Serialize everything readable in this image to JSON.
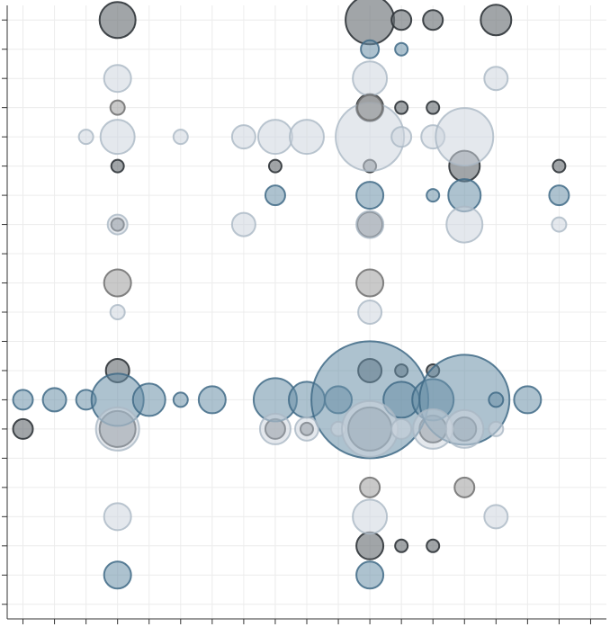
{
  "chart_data": {
    "type": "scatter",
    "title": "",
    "xlabel": "",
    "ylabel": "",
    "grid": true,
    "legend": "none",
    "xlim": [
      -0.5,
      18.5
    ],
    "ylim": [
      0.5,
      21.5
    ],
    "x_ticks": [
      0,
      1,
      2,
      3,
      4,
      5,
      6,
      7,
      8,
      9,
      10,
      11,
      12,
      13,
      14,
      15,
      16,
      17,
      18
    ],
    "y_ticks": [
      1,
      2,
      3,
      4,
      5,
      6,
      7,
      8,
      9,
      10,
      11,
      12,
      13,
      14,
      15,
      16,
      17,
      18,
      19,
      20,
      21
    ],
    "colors": {
      "dark": "#6f757a",
      "steel": "#6a90a8",
      "light": "#cdd6de",
      "gray": "#9c9c9c"
    },
    "series": [
      {
        "color": "dark",
        "points": [
          [
            3,
            21,
            20
          ],
          [
            11,
            21,
            27
          ],
          [
            12,
            21,
            11
          ],
          [
            13,
            21,
            11
          ],
          [
            15,
            21,
            17
          ],
          [
            11,
            18,
            15
          ],
          [
            12,
            18,
            7
          ],
          [
            13,
            18,
            7
          ],
          [
            3,
            16,
            7
          ],
          [
            8,
            16,
            7
          ],
          [
            11,
            16,
            7
          ],
          [
            14,
            16,
            17
          ],
          [
            17,
            16,
            7
          ],
          [
            3,
            14,
            7
          ],
          [
            11,
            14,
            14
          ],
          [
            3,
            9,
            13
          ],
          [
            11,
            9,
            13
          ],
          [
            12,
            9,
            7
          ],
          [
            13,
            9,
            7
          ],
          [
            0,
            7,
            11
          ],
          [
            3,
            7,
            20
          ],
          [
            8,
            7,
            11
          ],
          [
            9,
            7,
            7
          ],
          [
            11,
            7,
            24
          ],
          [
            13,
            7,
            15
          ],
          [
            14,
            7,
            13
          ],
          [
            11,
            3,
            15
          ],
          [
            12,
            3,
            7
          ],
          [
            13,
            3,
            7
          ]
        ]
      },
      {
        "color": "steel",
        "points": [
          [
            11,
            20,
            10
          ],
          [
            12,
            20,
            7
          ],
          [
            8,
            15,
            11
          ],
          [
            11,
            15,
            15
          ],
          [
            13,
            15,
            7
          ],
          [
            14,
            15,
            18
          ],
          [
            17,
            15,
            11
          ],
          [
            0,
            8,
            11
          ],
          [
            1,
            8,
            13
          ],
          [
            2,
            8,
            11
          ],
          [
            3,
            8,
            29
          ],
          [
            4,
            8,
            18
          ],
          [
            5,
            8,
            8
          ],
          [
            6,
            8,
            15
          ],
          [
            8,
            8,
            24
          ],
          [
            9,
            8,
            20
          ],
          [
            10,
            8,
            15
          ],
          [
            11,
            8,
            65
          ],
          [
            12,
            8,
            20
          ],
          [
            13,
            8,
            23
          ],
          [
            14,
            8,
            50
          ],
          [
            15,
            8,
            8
          ],
          [
            16,
            8,
            15
          ],
          [
            3,
            2,
            15
          ],
          [
            11,
            2,
            15
          ]
        ]
      },
      {
        "color": "light",
        "points": [
          [
            3,
            19,
            15
          ],
          [
            11,
            19,
            19
          ],
          [
            15,
            19,
            13
          ],
          [
            2,
            17,
            8
          ],
          [
            3,
            17,
            19
          ],
          [
            5,
            17,
            8
          ],
          [
            7,
            17,
            13
          ],
          [
            8,
            17,
            19
          ],
          [
            9,
            17,
            19
          ],
          [
            11,
            17,
            38
          ],
          [
            12,
            17,
            11
          ],
          [
            13,
            17,
            13
          ],
          [
            14,
            17,
            32
          ],
          [
            3,
            14,
            11
          ],
          [
            7,
            14,
            13
          ],
          [
            11,
            14,
            15
          ],
          [
            14,
            14,
            20
          ],
          [
            17,
            14,
            8
          ],
          [
            3,
            11,
            8
          ],
          [
            11,
            11,
            13
          ],
          [
            3,
            7,
            24
          ],
          [
            8,
            7,
            17
          ],
          [
            9,
            7,
            13
          ],
          [
            10,
            7,
            8
          ],
          [
            11,
            7,
            31
          ],
          [
            12,
            7,
            11
          ],
          [
            13,
            7,
            22
          ],
          [
            14,
            7,
            21
          ],
          [
            15,
            7,
            8
          ],
          [
            3,
            4,
            15
          ],
          [
            11,
            4,
            19
          ],
          [
            15,
            4,
            13
          ]
        ]
      },
      {
        "color": "gray",
        "points": [
          [
            3,
            18,
            8
          ],
          [
            11,
            18,
            14
          ],
          [
            3,
            12,
            15
          ],
          [
            11,
            12,
            15
          ],
          [
            11,
            5,
            11
          ],
          [
            14,
            5,
            11
          ]
        ]
      }
    ]
  }
}
